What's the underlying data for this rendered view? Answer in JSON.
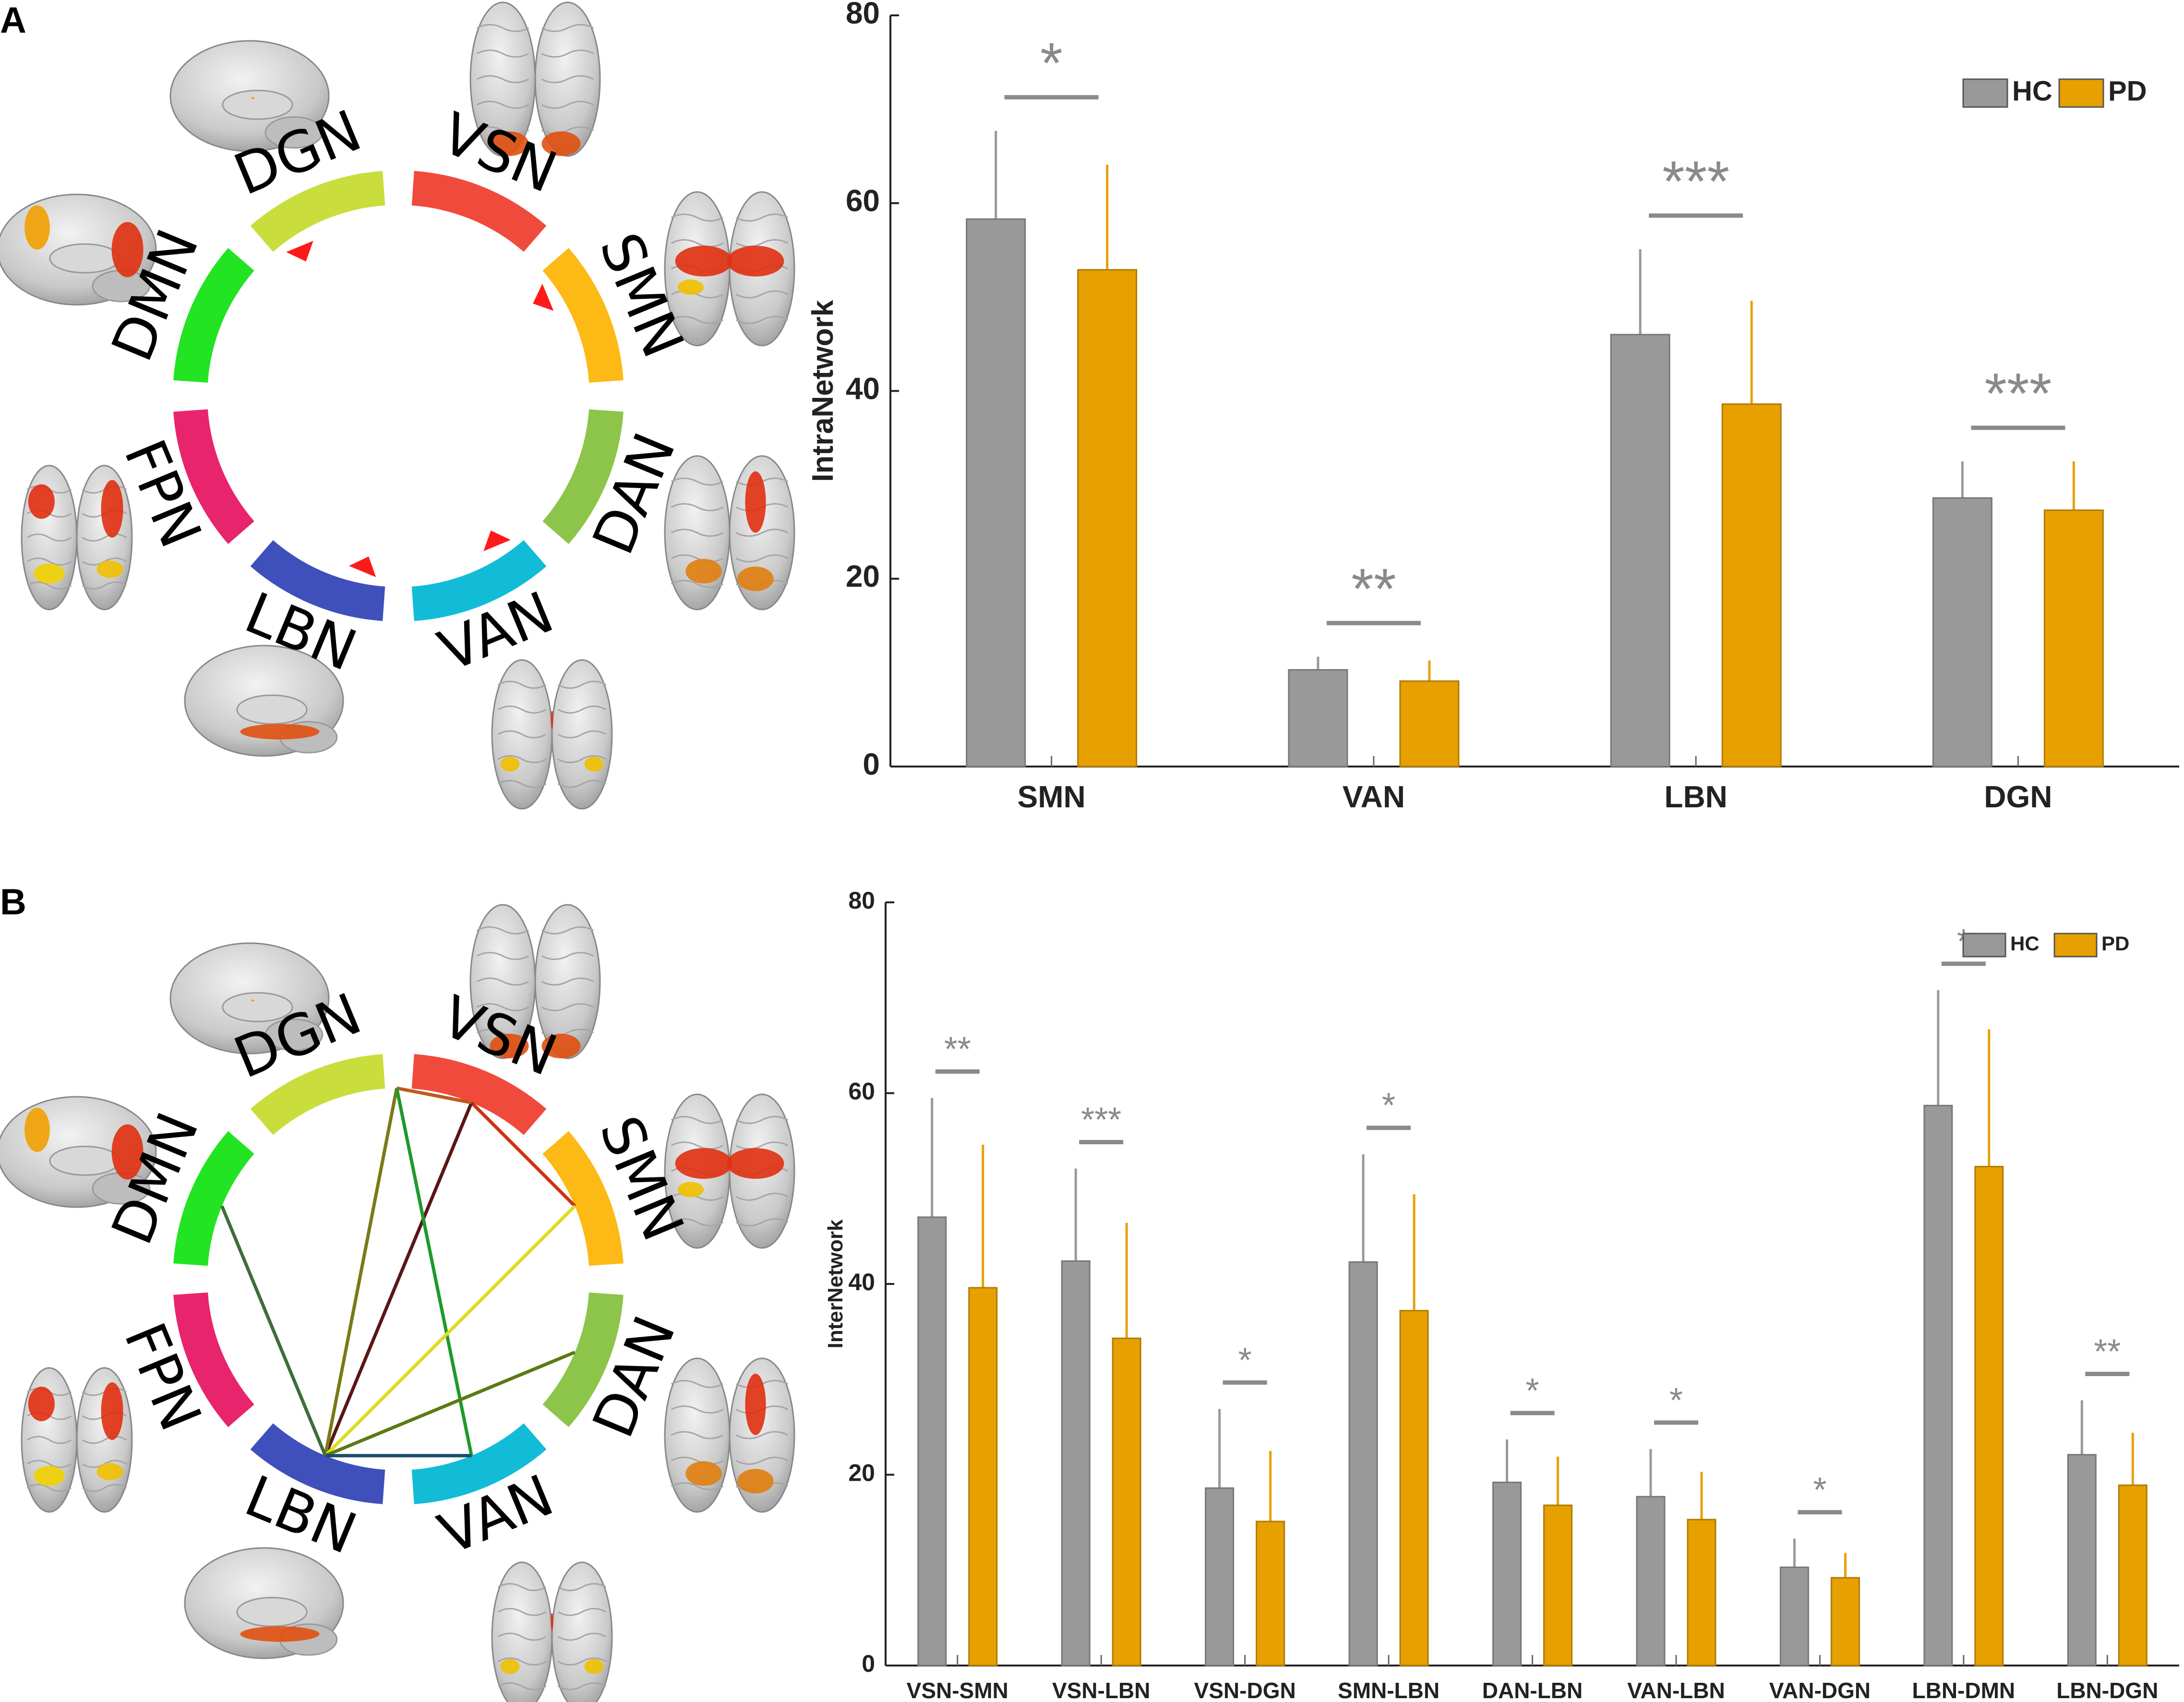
{
  "figure": {
    "panel_a_label": "A",
    "panel_b_label": "B"
  },
  "colors": {
    "hc": "#999999",
    "pd": "#e6a000",
    "sig": "#8a8a8a",
    "axis": "#222222",
    "arrow": "#ff1a1a"
  },
  "networks": [
    {
      "name": "VSN",
      "color": "#f04a3c"
    },
    {
      "name": "SMN",
      "color": "#fdb916"
    },
    {
      "name": "DAN",
      "color": "#8dc44a"
    },
    {
      "name": "VAN",
      "color": "#12bcd7"
    },
    {
      "name": "LBN",
      "color": "#3f4fbb"
    },
    {
      "name": "FPN",
      "color": "#e8246c"
    },
    {
      "name": "DMN",
      "color": "#22e422"
    },
    {
      "name": "DGN",
      "color": "#c9de3c"
    }
  ],
  "panel_a": {
    "marked_networks": [
      "SMN",
      "VAN",
      "LBN",
      "DGN"
    ]
  },
  "panel_b": {
    "connections": [
      {
        "from": "VSN",
        "to": "SMN",
        "color": "#cc3311"
      },
      {
        "from": "VSN",
        "to": "LBN",
        "color": "#5a1616"
      },
      {
        "from": "DGN",
        "to": "VSN",
        "color": "#c05a18"
      },
      {
        "from": "DGN",
        "to": "LBN",
        "color": "#7a7a18"
      },
      {
        "from": "DGN",
        "to": "VAN",
        "color": "#1e9a2a"
      },
      {
        "from": "SMN",
        "to": "LBN",
        "color": "#dddd22"
      },
      {
        "from": "DAN",
        "to": "LBN",
        "color": "#5b7a14"
      },
      {
        "from": "VAN",
        "to": "LBN",
        "color": "#1d4d6d"
      },
      {
        "from": "DMN",
        "to": "LBN",
        "color": "#3d6e3a"
      }
    ]
  },
  "chart_data": [
    {
      "type": "bar",
      "title": "",
      "xlabel": "",
      "ylabel": "IntraNetwork",
      "ylim": [
        0,
        80
      ],
      "yticks": [
        "0",
        "20",
        "40",
        "60",
        "80"
      ],
      "legend": {
        "position": "top-right",
        "entries": [
          "HC",
          "PD"
        ]
      },
      "categories": [
        "SMN",
        "VAN",
        "LBN",
        "DGN"
      ],
      "series": [
        {
          "name": "HC",
          "values": [
            58.3,
            10.3,
            46.0,
            28.6
          ],
          "errors": [
            9.4,
            1.4,
            9.1,
            3.9
          ]
        },
        {
          "name": "PD",
          "values": [
            52.9,
            9.1,
            38.6,
            27.3
          ],
          "errors": [
            11.2,
            2.2,
            11.0,
            5.2
          ]
        }
      ],
      "significance": [
        "*",
        "**",
        "***",
        "***"
      ]
    },
    {
      "type": "bar",
      "title": "",
      "xlabel": "",
      "ylabel": "InterNetwork",
      "ylim": [
        0,
        80
      ],
      "yticks": [
        "0",
        "20",
        "40",
        "60",
        "80"
      ],
      "legend": {
        "position": "top-right",
        "entries": [
          "HC",
          "PD"
        ]
      },
      "categories": [
        "VSN-SMN",
        "VSN-LBN",
        "VSN-DGN",
        "SMN-LBN",
        "DAN-LBN",
        "VAN-LBN",
        "VAN-DGN",
        "LBN-DMN",
        "LBN-DGN"
      ],
      "series": [
        {
          "name": "HC",
          "values": [
            47.0,
            42.4,
            18.6,
            42.3,
            19.2,
            17.7,
            10.3,
            58.7,
            22.1
          ],
          "errors": [
            12.5,
            9.7,
            8.3,
            11.3,
            4.5,
            5.0,
            3.0,
            12.1,
            5.7
          ]
        },
        {
          "name": "PD",
          "values": [
            39.6,
            34.3,
            15.1,
            37.2,
            16.8,
            15.3,
            9.2,
            52.3,
            18.9
          ],
          "errors": [
            15.0,
            12.1,
            7.4,
            12.2,
            5.1,
            5.0,
            2.6,
            14.4,
            5.5
          ]
        }
      ],
      "significance": [
        "**",
        "***",
        "*",
        "*",
        "*",
        "*",
        "*",
        "*",
        "**"
      ]
    }
  ]
}
